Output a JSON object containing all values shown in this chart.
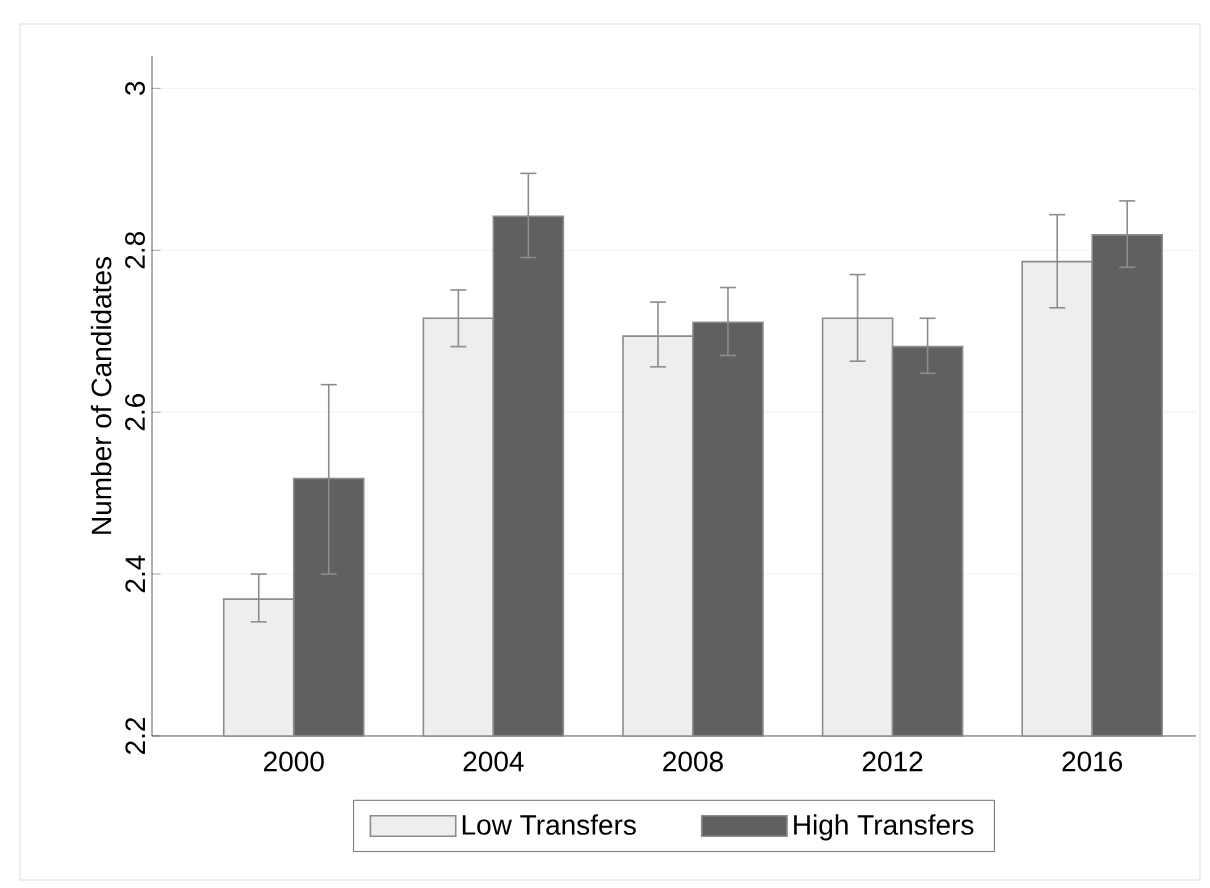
{
  "chart_data": {
    "type": "bar",
    "ylabel": "Number of Candidates",
    "categories": [
      "2000",
      "2004",
      "2008",
      "2012",
      "2016"
    ],
    "series": [
      {
        "name": "Low Transfers",
        "color": "#eeeeee",
        "values": [
          2.369,
          2.716,
          2.694,
          2.716,
          2.786
        ],
        "errors": [
          [
            2.341,
            2.4
          ],
          [
            2.681,
            2.751
          ],
          [
            2.656,
            2.736
          ],
          [
            2.663,
            2.77
          ],
          [
            2.729,
            2.844
          ]
        ]
      },
      {
        "name": "High Transfers",
        "color": "#606060",
        "values": [
          2.518,
          2.842,
          2.711,
          2.681,
          2.819
        ],
        "errors": [
          [
            2.4,
            2.634
          ],
          [
            2.791,
            2.895
          ],
          [
            2.67,
            2.754
          ],
          [
            2.648,
            2.716
          ],
          [
            2.779,
            2.861
          ]
        ]
      }
    ],
    "ylim": [
      2.2,
      3.04
    ],
    "yticks": [
      2.2,
      2.4,
      2.6,
      2.8,
      3
    ],
    "grid": "y",
    "legend": "bottom"
  }
}
